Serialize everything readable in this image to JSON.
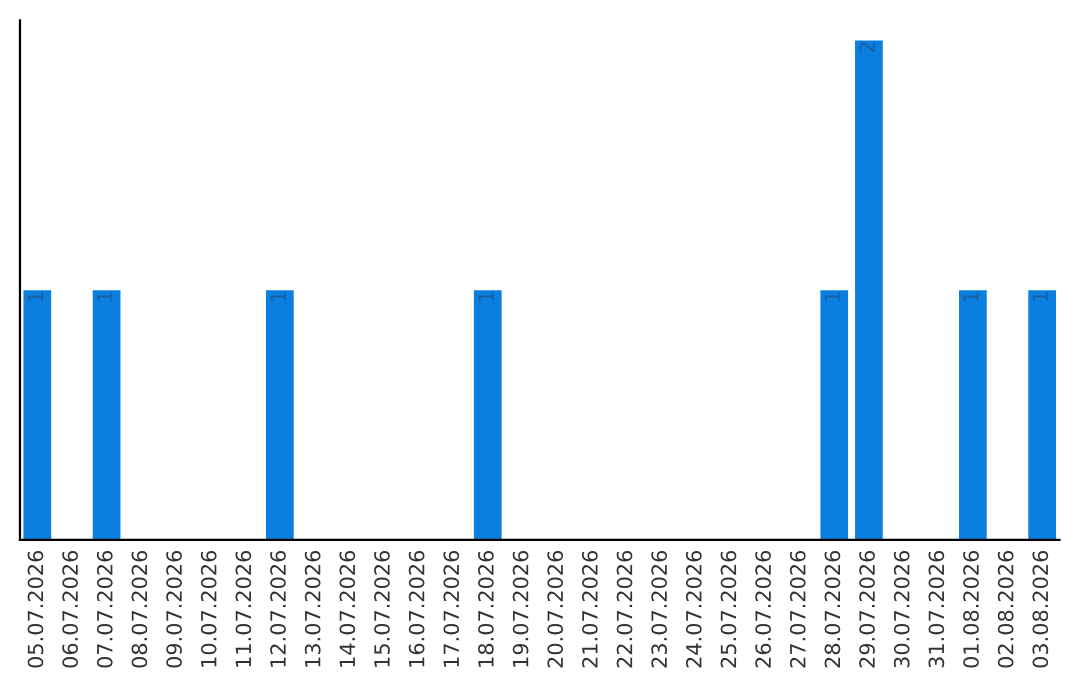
{
  "chart_data": {
    "type": "bar",
    "categories": [
      "05.07.2026",
      "06.07.2026",
      "07.07.2026",
      "08.07.2026",
      "09.07.2026",
      "10.07.2026",
      "11.07.2026",
      "12.07.2026",
      "13.07.2026",
      "14.07.2026",
      "15.07.2026",
      "16.07.2026",
      "17.07.2026",
      "18.07.2026",
      "19.07.2026",
      "20.07.2026",
      "21.07.2026",
      "22.07.2026",
      "23.07.2026",
      "24.07.2026",
      "25.07.2026",
      "26.07.2026",
      "27.07.2026",
      "28.07.2026",
      "29.07.2026",
      "30.07.2026",
      "31.07.2026",
      "01.08.2026",
      "02.08.2026",
      "03.08.2026"
    ],
    "values": [
      1,
      0,
      1,
      0,
      0,
      0,
      0,
      1,
      0,
      0,
      0,
      0,
      0,
      1,
      0,
      0,
      0,
      0,
      0,
      0,
      0,
      0,
      0,
      1,
      2,
      0,
      0,
      1,
      0,
      1
    ],
    "value_labels": [
      "1",
      null,
      "1",
      null,
      null,
      null,
      null,
      "1",
      null,
      null,
      null,
      null,
      null,
      "1",
      null,
      null,
      null,
      null,
      null,
      null,
      null,
      null,
      null,
      "1",
      "2",
      null,
      null,
      "1",
      null,
      "1"
    ],
    "color": "#0a7fe0",
    "ylim": [
      0,
      2.08
    ],
    "tick_labels": "x",
    "grid": false,
    "legend": false
  }
}
